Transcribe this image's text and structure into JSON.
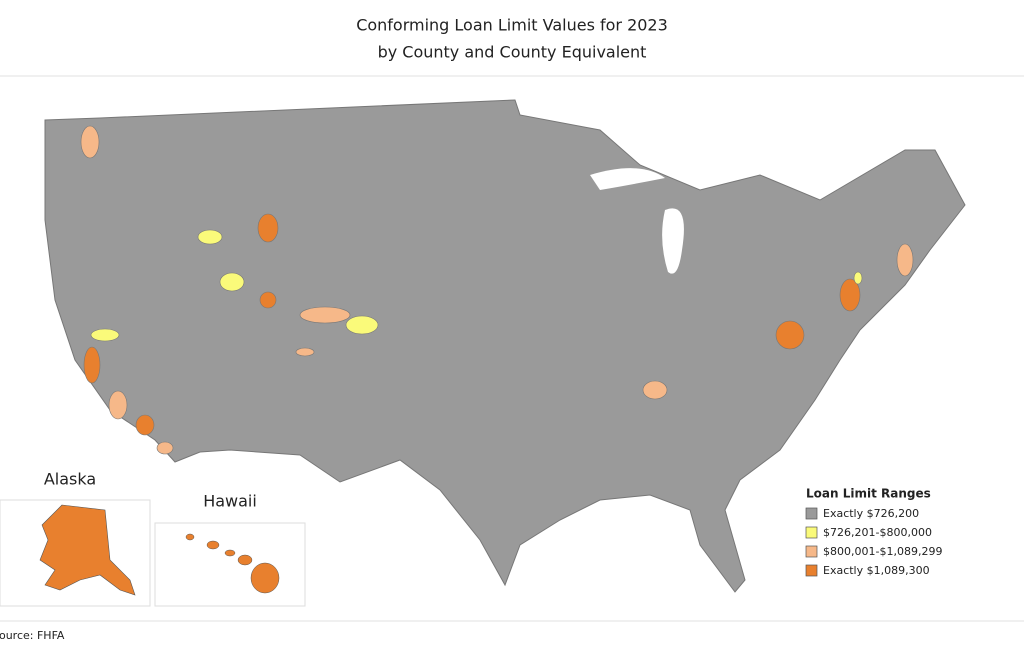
{
  "header": {
    "title_line1": "Conforming Loan Limit Values for 2023",
    "title_line2": "by County and County Equivalent"
  },
  "insets": {
    "alaska": "Alaska",
    "hawaii": "Hawaii"
  },
  "legend": {
    "title": "Loan Limit Ranges",
    "items": [
      {
        "label": "Exactly $726,200",
        "color": "#9a9a9a"
      },
      {
        "label": "$726,201-$800,000",
        "color": "#fafa7a"
      },
      {
        "label": "$800,001-$1,089,299",
        "color": "#f6b889"
      },
      {
        "label": "Exactly $1,089,300",
        "color": "#e8802e"
      }
    ]
  },
  "source": "Source: FHFA"
}
